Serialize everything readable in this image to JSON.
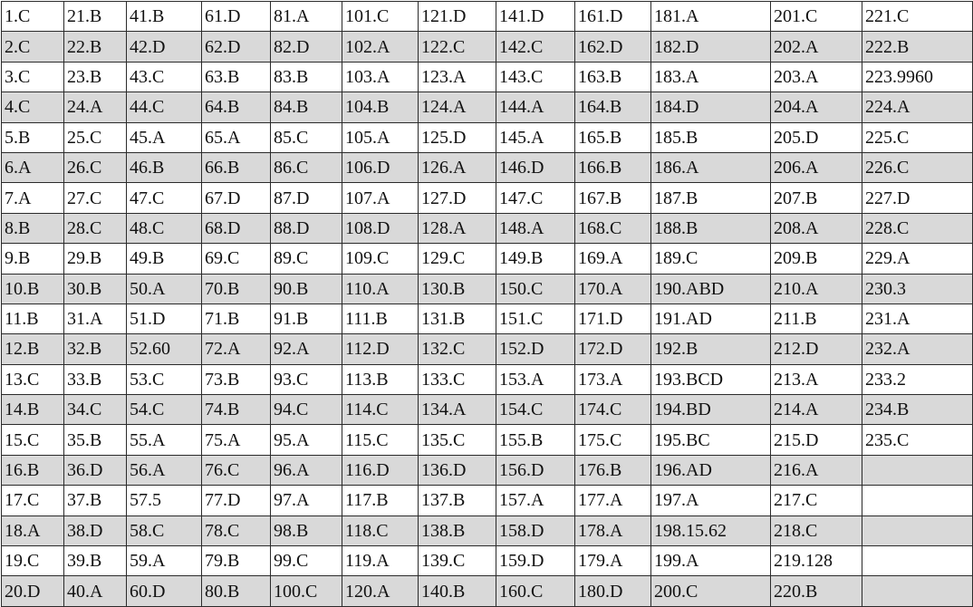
{
  "answer_key": {
    "rows": [
      [
        "1.C",
        "21.B",
        "41.B",
        "61.D",
        "81.A",
        "101.C",
        "121.D",
        "141.D",
        "161.D",
        "181.A",
        "201.C",
        "221.C"
      ],
      [
        "2.C",
        "22.B",
        "42.D",
        "62.D",
        "82.D",
        "102.A",
        "122.C",
        "142.C",
        "162.D",
        "182.D",
        "202.A",
        "222.B"
      ],
      [
        "3.C",
        "23.B",
        "43.C",
        "63.B",
        "83.B",
        "103.A",
        "123.A",
        "143.C",
        "163.B",
        "183.A",
        "203.A",
        "223.9960"
      ],
      [
        "4.C",
        "24.A",
        "44.C",
        "64.B",
        "84.B",
        "104.B",
        "124.A",
        "144.A",
        "164.B",
        "184.D",
        "204.A",
        "224.A"
      ],
      [
        "5.B",
        "25.C",
        "45.A",
        "65.A",
        "85.C",
        "105.A",
        "125.D",
        "145.A",
        "165.B",
        "185.B",
        "205.D",
        "225.C"
      ],
      [
        "6.A",
        "26.C",
        "46.B",
        "66.B",
        "86.C",
        "106.D",
        "126.A",
        "146.D",
        "166.B",
        "186.A",
        "206.A",
        "226.C"
      ],
      [
        "7.A",
        "27.C",
        "47.C",
        "67.D",
        "87.D",
        "107.A",
        "127.D",
        "147.C",
        "167.B",
        "187.B",
        "207.B",
        "227.D"
      ],
      [
        "8.B",
        "28.C",
        "48.C",
        "68.D",
        "88.D",
        "108.D",
        "128.A",
        "148.A",
        "168.C",
        "188.B",
        "208.A",
        "228.C"
      ],
      [
        "9.B",
        "29.B",
        "49.B",
        "69.C",
        "89.C",
        "109.C",
        "129.C",
        "149.B",
        "169.A",
        "189.C",
        "209.B",
        "229.A"
      ],
      [
        "10.B",
        "30.B",
        "50.A",
        "70.B",
        "90.B",
        "110.A",
        "130.B",
        "150.C",
        "170.A",
        "190.ABD",
        "210.A",
        "230.3"
      ],
      [
        "11.B",
        "31.A",
        "51.D",
        "71.B",
        "91.B",
        "111.B",
        "131.B",
        "151.C",
        "171.D",
        "191.AD",
        "211.B",
        "231.A"
      ],
      [
        "12.B",
        "32.B",
        "52.60",
        "72.A",
        "92.A",
        "112.D",
        "132.C",
        "152.D",
        "172.D",
        "192.B",
        "212.D",
        "232.A"
      ],
      [
        "13.C",
        "33.B",
        "53.C",
        "73.B",
        "93.C",
        "113.B",
        "133.C",
        "153.A",
        "173.A",
        "193.BCD",
        "213.A",
        "233.2"
      ],
      [
        "14.B",
        "34.C",
        "54.C",
        "74.B",
        "94.C",
        "114.C",
        "134.A",
        "154.C",
        "174.C",
        "194.BD",
        "214.A",
        "234.B"
      ],
      [
        "15.C",
        "35.B",
        "55.A",
        "75.A",
        "95.A",
        "115.C",
        "135.C",
        "155.B",
        "175.C",
        "195.BC",
        "215.D",
        "235.C"
      ],
      [
        "16.B",
        "36.D",
        "56.A",
        "76.C",
        "96.A",
        "116.D",
        "136.D",
        "156.D",
        "176.B",
        "196.AD",
        "216.A",
        ""
      ],
      [
        "17.C",
        "37.B",
        "57.5",
        "77.D",
        "97.A",
        "117.B",
        "137.B",
        "157.A",
        "177.A",
        "197.A",
        "217.C",
        ""
      ],
      [
        "18.A",
        "38.D",
        "58.C",
        "78.C",
        "98.B",
        "118.C",
        "138.B",
        "158.D",
        "178.A",
        "198.15.62",
        "218.C",
        ""
      ],
      [
        "19.C",
        "39.B",
        "59.A",
        "79.B",
        "99.C",
        "119.A",
        "139.C",
        "159.D",
        "179.A",
        "199.A",
        "219.128",
        ""
      ],
      [
        "20.D",
        "40.A",
        "60.D",
        "80.B",
        "100.C",
        "120.A",
        "140.B",
        "160.C",
        "180.D",
        "200.C",
        "220.B",
        ""
      ]
    ]
  }
}
